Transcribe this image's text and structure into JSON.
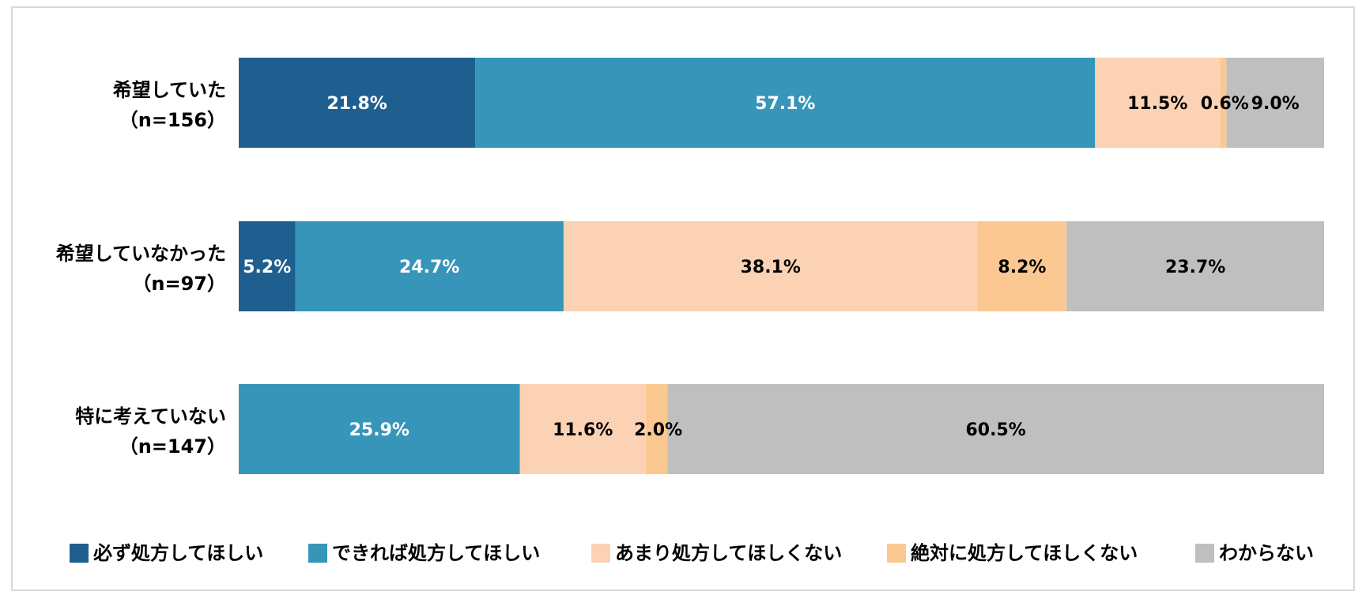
{
  "colors": {
    "series": [
      "#1F5F8F",
      "#3795BA",
      "#FBD3B4",
      "#FCC892",
      "#BFBFBF"
    ]
  },
  "chart_data": {
    "type": "bar",
    "orientation": "horizontal",
    "stacked": "percent",
    "categories": [
      {
        "name": "希望していた",
        "n": "（n=156）"
      },
      {
        "name": "希望していなかった",
        "n": "（n=97）"
      },
      {
        "name": "特に考えていない",
        "n": "（n=147）"
      }
    ],
    "series": [
      {
        "name": "必ず処方してほしい",
        "values": [
          21.8,
          5.2,
          0
        ],
        "labels": [
          "21.8%",
          "5.2%",
          ""
        ],
        "label_color": "#ffffff"
      },
      {
        "name": "できれば処方してほしい",
        "values": [
          57.1,
          24.7,
          25.9
        ],
        "labels": [
          "57.1%",
          "24.7%",
          "25.9%"
        ],
        "label_color": "#ffffff"
      },
      {
        "name": "あまり処方してほしくない",
        "values": [
          11.5,
          38.1,
          11.6
        ],
        "labels": [
          "11.5%",
          "38.1%",
          "11.6%"
        ],
        "label_color": "#000000"
      },
      {
        "name": "絶対に処方してほしくない",
        "values": [
          0.6,
          8.2,
          2.0
        ],
        "labels": [
          "0.6%",
          "8.2%",
          "2.0%"
        ],
        "label_color": "#000000"
      },
      {
        "name": "わからない",
        "values": [
          9.0,
          23.7,
          60.5
        ],
        "labels": [
          "9.0%",
          "23.7%",
          "60.5%"
        ],
        "label_color": "#000000"
      }
    ],
    "legend_position": "bottom",
    "grid": false
  }
}
